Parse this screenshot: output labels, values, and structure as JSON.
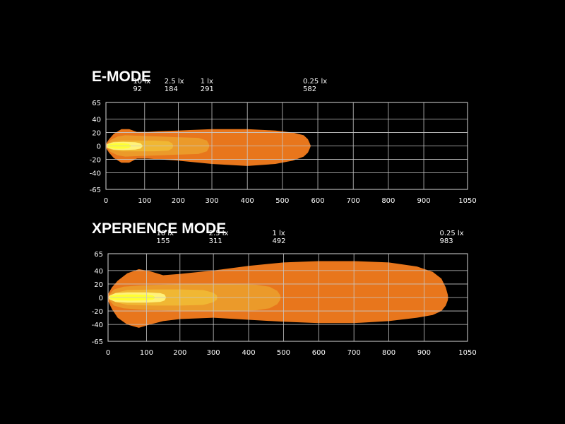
{
  "colors": {
    "background": "#000000",
    "grid": "#c8c8c8",
    "text": "#ffffff",
    "zone_0_25lx": "#e8761c",
    "zone_1lx": "#eb9a2a",
    "zone_2_5lx": "#f0b733",
    "zone_10lx": "#fff27a",
    "hotspot": "#ffff33"
  },
  "chart_data": [
    {
      "type": "beam-pattern",
      "title": "E-MODE",
      "xlim": [
        0,
        1050
      ],
      "ylim": [
        -65,
        65
      ],
      "x_ticks": [
        0,
        100,
        200,
        300,
        400,
        500,
        600,
        700,
        800,
        900,
        1050
      ],
      "y_ticks": [
        65,
        40,
        20,
        0,
        -20,
        -40,
        -65
      ],
      "grid": true,
      "annotations": [
        {
          "lux": "10 lx",
          "distance": "92",
          "x": 92
        },
        {
          "lux": "2.5 lx",
          "distance": "184",
          "x": 184
        },
        {
          "lux": "1 lx",
          "distance": "291",
          "x": 291
        },
        {
          "lux": "0.25 lx",
          "distance": "582",
          "x": 582
        }
      ],
      "zones": [
        {
          "key": "zone_0_25lx",
          "outline": [
            [
              0,
              3
            ],
            [
              8,
              10
            ],
            [
              20,
              18
            ],
            [
              40,
              25
            ],
            [
              60,
              25
            ],
            [
              80,
              21
            ],
            [
              110,
              21
            ],
            [
              140,
              22
            ],
            [
              200,
              23
            ],
            [
              300,
              25
            ],
            [
              400,
              25
            ],
            [
              480,
              23
            ],
            [
              530,
              20
            ],
            [
              560,
              16
            ],
            [
              572,
              10
            ],
            [
              578,
              3
            ],
            [
              580,
              0
            ],
            [
              578,
              -3
            ],
            [
              572,
              -10
            ],
            [
              560,
              -16
            ],
            [
              530,
              -22
            ],
            [
              480,
              -27
            ],
            [
              400,
              -30
            ],
            [
              300,
              -27
            ],
            [
              200,
              -22
            ],
            [
              140,
              -20
            ],
            [
              110,
              -19
            ],
            [
              80,
              -19
            ],
            [
              60,
              -25
            ],
            [
              40,
              -25
            ],
            [
              20,
              -18
            ],
            [
              8,
              -10
            ],
            [
              0,
              -3
            ]
          ]
        },
        {
          "key": "zone_1lx",
          "outline": [
            [
              2,
              2
            ],
            [
              12,
              9
            ],
            [
              30,
              14
            ],
            [
              50,
              16
            ],
            [
              90,
              15
            ],
            [
              150,
              14
            ],
            [
              200,
              13
            ],
            [
              260,
              12
            ],
            [
              285,
              8
            ],
            [
              291,
              3
            ],
            [
              292,
              0
            ],
            [
              291,
              -3
            ],
            [
              285,
              -8
            ],
            [
              260,
              -12
            ],
            [
              200,
              -13
            ],
            [
              150,
              -14
            ],
            [
              90,
              -15
            ],
            [
              50,
              -16
            ],
            [
              30,
              -14
            ],
            [
              12,
              -9
            ],
            [
              2,
              -2
            ]
          ]
        },
        {
          "key": "zone_2_5lx",
          "outline": [
            [
              4,
              2
            ],
            [
              15,
              6
            ],
            [
              40,
              8
            ],
            [
              80,
              8
            ],
            [
              130,
              8
            ],
            [
              170,
              7
            ],
            [
              182,
              4
            ],
            [
              185,
              0
            ],
            [
              182,
              -4
            ],
            [
              170,
              -7
            ],
            [
              130,
              -8
            ],
            [
              80,
              -8
            ],
            [
              40,
              -8
            ],
            [
              15,
              -6
            ],
            [
              4,
              -2
            ]
          ]
        },
        {
          "key": "zone_10lx",
          "outline": [
            [
              5,
              1.5
            ],
            [
              20,
              4
            ],
            [
              45,
              4.5
            ],
            [
              75,
              4
            ],
            [
              88,
              2.5
            ],
            [
              92,
              0
            ],
            [
              88,
              -2.5
            ],
            [
              75,
              -4
            ],
            [
              45,
              -4.5
            ],
            [
              20,
              -4
            ],
            [
              5,
              -1.5
            ]
          ]
        },
        {
          "key": "hotspot",
          "outline": [
            [
              8,
              1
            ],
            [
              25,
              2.5
            ],
            [
              45,
              2.5
            ],
            [
              58,
              1.5
            ],
            [
              62,
              0
            ],
            [
              58,
              -1.5
            ],
            [
              45,
              -2.5
            ],
            [
              25,
              -2.5
            ],
            [
              8,
              -1
            ]
          ]
        }
      ]
    },
    {
      "type": "beam-pattern",
      "title": "XPERIENCE MODE",
      "xlim": [
        0,
        1050
      ],
      "ylim": [
        -65,
        65
      ],
      "x_ticks": [
        0,
        100,
        200,
        300,
        400,
        500,
        600,
        700,
        800,
        900,
        1050
      ],
      "y_ticks": [
        65,
        40,
        20,
        0,
        -20,
        -40,
        -65
      ],
      "grid": true,
      "annotations": [
        {
          "lux": "10 lx",
          "distance": "155",
          "x": 155
        },
        {
          "lux": "2.5 lx",
          "distance": "311",
          "x": 311
        },
        {
          "lux": "1 lx",
          "distance": "492",
          "x": 492
        },
        {
          "lux": "0.25 lx",
          "distance": "983",
          "x": 983
        }
      ],
      "zones": [
        {
          "key": "zone_0_25lx",
          "outline": [
            [
              0,
              5
            ],
            [
              10,
              15
            ],
            [
              25,
              25
            ],
            [
              50,
              36
            ],
            [
              80,
              42
            ],
            [
              110,
              39
            ],
            [
              150,
              33
            ],
            [
              200,
              35
            ],
            [
              300,
              40
            ],
            [
              400,
              47
            ],
            [
              500,
              52
            ],
            [
              600,
              54
            ],
            [
              700,
              54
            ],
            [
              800,
              52
            ],
            [
              880,
              46
            ],
            [
              930,
              38
            ],
            [
              960,
              28
            ],
            [
              975,
              15
            ],
            [
              982,
              4
            ],
            [
              983,
              0
            ],
            [
              982,
              -4
            ],
            [
              975,
              -12
            ],
            [
              960,
              -20
            ],
            [
              930,
              -26
            ],
            [
              880,
              -30
            ],
            [
              800,
              -35
            ],
            [
              700,
              -38
            ],
            [
              600,
              -38
            ],
            [
              500,
              -36
            ],
            [
              400,
              -33
            ],
            [
              300,
              -30
            ],
            [
              200,
              -32
            ],
            [
              150,
              -35
            ],
            [
              110,
              -40
            ],
            [
              80,
              -45
            ],
            [
              50,
              -40
            ],
            [
              25,
              -30
            ],
            [
              10,
              -17
            ],
            [
              0,
              -5
            ]
          ]
        },
        {
          "key": "zone_1lx",
          "outline": [
            [
              2,
              3
            ],
            [
              15,
              12
            ],
            [
              40,
              16
            ],
            [
              90,
              18
            ],
            [
              150,
              19
            ],
            [
              250,
              20
            ],
            [
              350,
              20
            ],
            [
              420,
              19
            ],
            [
              460,
              16
            ],
            [
              482,
              10
            ],
            [
              490,
              4
            ],
            [
              492,
              0
            ],
            [
              490,
              -4
            ],
            [
              482,
              -10
            ],
            [
              460,
              -16
            ],
            [
              420,
              -19
            ],
            [
              350,
              -20
            ],
            [
              250,
              -20
            ],
            [
              150,
              -19
            ],
            [
              90,
              -18
            ],
            [
              40,
              -16
            ],
            [
              15,
              -12
            ],
            [
              2,
              -3
            ]
          ]
        },
        {
          "key": "zone_2_5lx",
          "outline": [
            [
              4,
              2
            ],
            [
              20,
              7
            ],
            [
              50,
              11
            ],
            [
              120,
              12
            ],
            [
              200,
              12
            ],
            [
              270,
              11
            ],
            [
              300,
              7
            ],
            [
              310,
              3
            ],
            [
              311,
              0
            ],
            [
              310,
              -3
            ],
            [
              300,
              -7
            ],
            [
              270,
              -11
            ],
            [
              200,
              -12
            ],
            [
              120,
              -12
            ],
            [
              50,
              -11
            ],
            [
              20,
              -7
            ],
            [
              4,
              -2
            ]
          ]
        },
        {
          "key": "zone_10lx",
          "outline": [
            [
              5,
              1.5
            ],
            [
              20,
              5
            ],
            [
              50,
              6
            ],
            [
              100,
              6
            ],
            [
              140,
              5
            ],
            [
              152,
              3
            ],
            [
              155,
              0
            ],
            [
              152,
              -3
            ],
            [
              140,
              -5
            ],
            [
              100,
              -6
            ],
            [
              50,
              -6
            ],
            [
              20,
              -5
            ],
            [
              5,
              -1.5
            ]
          ]
        },
        {
          "key": "hotspot",
          "outline": [
            [
              8,
              1
            ],
            [
              25,
              2.5
            ],
            [
              60,
              3
            ],
            [
              100,
              2.5
            ],
            [
              118,
              1.5
            ],
            [
              122,
              0
            ],
            [
              118,
              -1.5
            ],
            [
              100,
              -2.5
            ],
            [
              60,
              -3
            ],
            [
              25,
              -2.5
            ],
            [
              8,
              -1
            ]
          ]
        }
      ]
    }
  ]
}
